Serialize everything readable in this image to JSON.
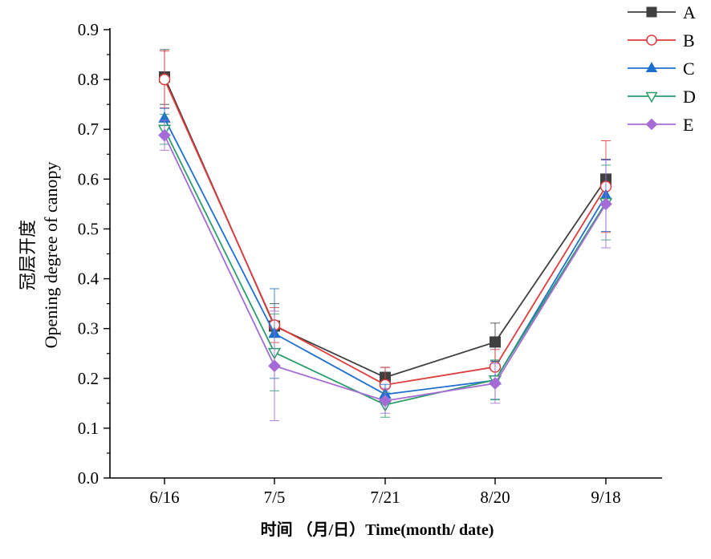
{
  "chart_data": {
    "type": "line",
    "title": "",
    "xlabel": "时间 （月/日）Time(month/ date)",
    "ylabel": "冠层开度 Opening degree of canopy",
    "ylabel_lines": [
      "冠层开度",
      "Opening degree of canopy"
    ],
    "categories": [
      "6/16",
      "7/5",
      "7/21",
      "8/20",
      "9/18"
    ],
    "ylim": [
      0.0,
      0.9
    ],
    "yticks": [
      "0.0",
      "0.1",
      "0.2",
      "0.3",
      "0.4",
      "0.5",
      "0.6",
      "0.7",
      "0.8",
      "0.9"
    ],
    "grid": false,
    "legend_position": "top-right",
    "series": [
      {
        "name": "A",
        "color": "#404040",
        "marker": "square",
        "values": [
          0.805,
          0.305,
          0.202,
          0.273,
          0.6
        ],
        "errors": [
          0.055,
          0.045,
          0.02,
          0.038,
          0.04
        ]
      },
      {
        "name": "B",
        "color": "#e03c3c",
        "marker": "circle-open",
        "values": [
          0.8,
          0.307,
          0.187,
          0.223,
          0.585
        ],
        "errors": [
          0.057,
          0.035,
          0.035,
          0.035,
          0.092
        ]
      },
      {
        "name": "C",
        "color": "#1f6fd0",
        "marker": "triangle-up",
        "values": [
          0.722,
          0.29,
          0.168,
          0.196,
          0.567
        ],
        "errors": [
          0.02,
          0.09,
          0.02,
          0.038,
          0.072
        ]
      },
      {
        "name": "D",
        "color": "#2a9d6a",
        "marker": "triangle-down-open",
        "values": [
          0.7,
          0.252,
          0.147,
          0.197,
          0.553
        ],
        "errors": [
          0.03,
          0.077,
          0.025,
          0.04,
          0.075
        ]
      },
      {
        "name": "E",
        "color": "#a56cd6",
        "marker": "diamond",
        "values": [
          0.688,
          0.225,
          0.155,
          0.19,
          0.55
        ],
        "errors": [
          0.03,
          0.11,
          0.025,
          0.04,
          0.088
        ]
      }
    ]
  }
}
